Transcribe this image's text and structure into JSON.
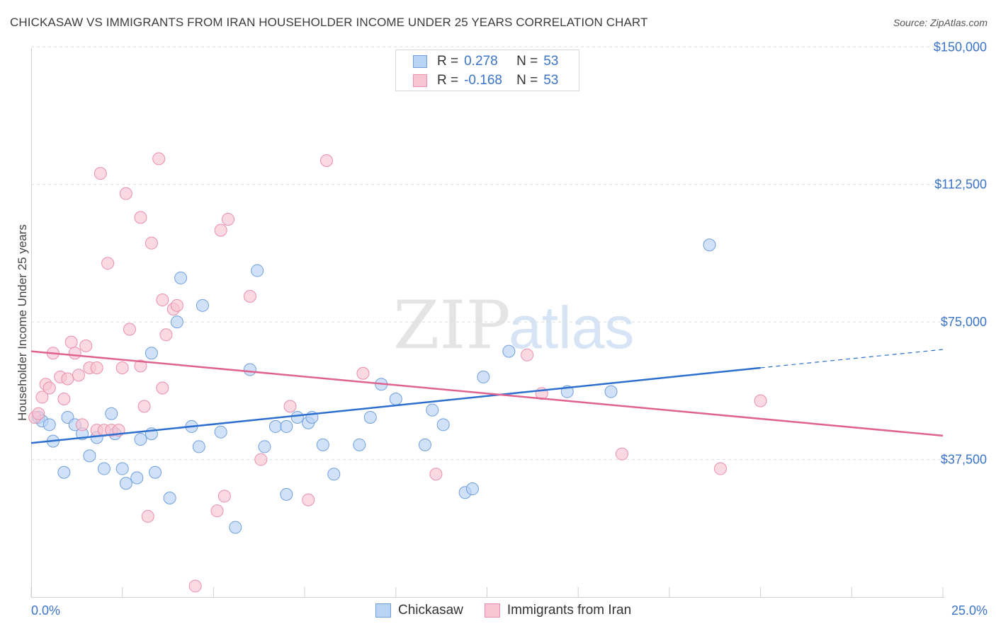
{
  "title": "CHICKASAW VS IMMIGRANTS FROM IRAN HOUSEHOLDER INCOME UNDER 25 YEARS CORRELATION CHART",
  "source": "Source: ZipAtlas.com",
  "watermark": {
    "zip": "ZIP",
    "atlas": "atlas"
  },
  "colors": {
    "blue_fill": "#b9d3f5",
    "blue_stroke": "#6f9fdb",
    "blue_line": "#2c6fcf",
    "pink_fill": "#f8c4d4",
    "pink_stroke": "#e98fac",
    "pink_line": "#e0628f",
    "axis_text": "#3b74c7"
  },
  "legend": {
    "rows": [
      {
        "r_label": "R =",
        "r_value": "0.278",
        "n_label": "N =",
        "n_value": "53"
      },
      {
        "r_label": "R =",
        "r_value": "-0.168",
        "n_label": "N =",
        "n_value": "53"
      }
    ]
  },
  "bottom_legend": [
    "Chickasaw",
    "Immigrants from Iran"
  ],
  "chart_data": {
    "type": "scatter",
    "title": "CHICKASAW VS IMMIGRANTS FROM IRAN HOUSEHOLDER INCOME UNDER 25 YEARS CORRELATION CHART",
    "xlabel": "",
    "ylabel": "Householder Income Under 25 years",
    "xlim": [
      0,
      25
    ],
    "ylim": [
      0,
      157000
    ],
    "x_tick_labels": [
      "0.0%",
      "25.0%"
    ],
    "y_ticks": [
      37500,
      75000,
      112500,
      150000
    ],
    "y_tick_labels": [
      "$37,500",
      "$75,000",
      "$112,500",
      "$150,000"
    ],
    "series": [
      {
        "name": "Chickasaw",
        "r": 0.278,
        "n": 53,
        "trend": {
          "x0": 0,
          "y0": 42000,
          "x1": 20,
          "y1": 62500,
          "dash_to_x": 25,
          "dash_to_y": 67500
        },
        "points": [
          [
            0.2,
            49000
          ],
          [
            0.3,
            48000
          ],
          [
            0.5,
            47000
          ],
          [
            0.6,
            42500
          ],
          [
            0.9,
            34000
          ],
          [
            1.0,
            49000
          ],
          [
            1.2,
            47000
          ],
          [
            1.4,
            44500
          ],
          [
            1.6,
            38500
          ],
          [
            1.8,
            43500
          ],
          [
            2.0,
            35000
          ],
          [
            2.2,
            50000
          ],
          [
            2.3,
            44500
          ],
          [
            2.5,
            35000
          ],
          [
            2.6,
            31000
          ],
          [
            2.9,
            32500
          ],
          [
            3.0,
            43000
          ],
          [
            3.3,
            44500
          ],
          [
            3.4,
            34000
          ],
          [
            3.3,
            66500
          ],
          [
            3.8,
            27000
          ],
          [
            4.0,
            75000
          ],
          [
            4.1,
            87000
          ],
          [
            4.4,
            46500
          ],
          [
            4.6,
            41000
          ],
          [
            4.7,
            79500
          ],
          [
            5.2,
            45000
          ],
          [
            5.6,
            19000
          ],
          [
            6.0,
            62000
          ],
          [
            6.2,
            89000
          ],
          [
            6.4,
            41000
          ],
          [
            6.7,
            46500
          ],
          [
            7.0,
            46500
          ],
          [
            7.0,
            28000
          ],
          [
            7.3,
            49000
          ],
          [
            7.6,
            47500
          ],
          [
            7.7,
            49000
          ],
          [
            8.0,
            41500
          ],
          [
            8.3,
            33500
          ],
          [
            9.0,
            41500
          ],
          [
            9.3,
            49000
          ],
          [
            9.6,
            58000
          ],
          [
            10.0,
            54000
          ],
          [
            10.8,
            41500
          ],
          [
            11.0,
            51000
          ],
          [
            11.3,
            47000
          ],
          [
            11.9,
            28500
          ],
          [
            12.1,
            29500
          ],
          [
            12.4,
            60000
          ],
          [
            13.1,
            67000
          ],
          [
            14.7,
            56000
          ],
          [
            15.9,
            56000
          ],
          [
            18.6,
            96000
          ]
        ]
      },
      {
        "name": "Immigrants from Iran",
        "r": -0.168,
        "n": 53,
        "trend": {
          "x0": 0,
          "y0": 67000,
          "x1": 25,
          "y1": 44000
        },
        "points": [
          [
            0.1,
            49000
          ],
          [
            0.2,
            50000
          ],
          [
            0.3,
            54500
          ],
          [
            0.4,
            58000
          ],
          [
            0.5,
            57000
          ],
          [
            0.6,
            66500
          ],
          [
            0.8,
            60000
          ],
          [
            0.9,
            54000
          ],
          [
            1.0,
            59500
          ],
          [
            1.1,
            69500
          ],
          [
            1.2,
            66500
          ],
          [
            1.3,
            60500
          ],
          [
            1.4,
            47000
          ],
          [
            1.5,
            68500
          ],
          [
            1.6,
            62500
          ],
          [
            1.8,
            45500
          ],
          [
            1.8,
            62500
          ],
          [
            1.9,
            115500
          ],
          [
            2.0,
            45500
          ],
          [
            2.1,
            91000
          ],
          [
            2.2,
            45500
          ],
          [
            2.4,
            45500
          ],
          [
            2.5,
            62500
          ],
          [
            2.6,
            110000
          ],
          [
            2.7,
            73000
          ],
          [
            3.0,
            63000
          ],
          [
            3.0,
            103500
          ],
          [
            3.1,
            52000
          ],
          [
            3.2,
            22000
          ],
          [
            3.3,
            96500
          ],
          [
            3.5,
            119500
          ],
          [
            3.6,
            81000
          ],
          [
            3.6,
            57000
          ],
          [
            3.7,
            71500
          ],
          [
            3.9,
            78500
          ],
          [
            4.0,
            79500
          ],
          [
            4.5,
            3000
          ],
          [
            5.1,
            23500
          ],
          [
            5.2,
            100000
          ],
          [
            5.3,
            27500
          ],
          [
            5.4,
            103000
          ],
          [
            6.0,
            82000
          ],
          [
            6.3,
            37500
          ],
          [
            7.1,
            52000
          ],
          [
            7.6,
            26500
          ],
          [
            8.1,
            119000
          ],
          [
            9.1,
            61000
          ],
          [
            11.1,
            33500
          ],
          [
            13.6,
            66000
          ],
          [
            14.0,
            55500
          ],
          [
            16.2,
            39000
          ],
          [
            18.9,
            35000
          ],
          [
            20.0,
            53500
          ]
        ]
      }
    ]
  }
}
